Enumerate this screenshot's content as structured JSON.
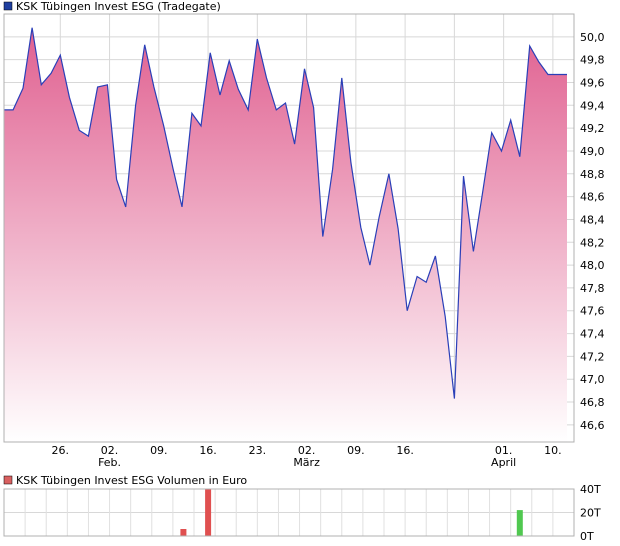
{
  "chart_data": [
    {
      "type": "area",
      "title": "KSK Tübingen Invest ESG (Tradegate)",
      "legend_color": "#1f3f9f",
      "line_color": "#2a3fb8",
      "fill_top_color": "#e06090",
      "fill_bottom_color": "#ffffff",
      "ylim": [
        46.45,
        50.2
      ],
      "y_ticks": [
        50.0,
        49.8,
        49.6,
        49.4,
        49.2,
        49.0,
        48.8,
        48.6,
        48.4,
        48.2,
        48.0,
        47.8,
        47.6,
        47.4,
        47.2,
        47.0,
        46.8,
        46.6
      ],
      "y_tick_labels": [
        "50,0",
        "49,8",
        "49,6",
        "49,4",
        "49,2",
        "49,0",
        "48,8",
        "48,6",
        "48,4",
        "48,2",
        "48,0",
        "47,8",
        "47,6",
        "47,4",
        "47,2",
        "47,0",
        "46,8",
        "46,6"
      ],
      "x_ticks": [
        {
          "day": 12,
          "label": "26.",
          "sublabel": ""
        },
        {
          "day": 19,
          "label": "02.",
          "sublabel": "Feb."
        },
        {
          "day": 26,
          "label": "09.",
          "sublabel": ""
        },
        {
          "day": 33,
          "label": "16.",
          "sublabel": ""
        },
        {
          "day": 40,
          "label": "23.",
          "sublabel": ""
        },
        {
          "day": 47,
          "label": "02.",
          "sublabel": "März"
        },
        {
          "day": 54,
          "label": "09.",
          "sublabel": ""
        },
        {
          "day": 61,
          "label": "16.",
          "sublabel": ""
        },
        {
          "day": 68,
          "label": "",
          "sublabel": ""
        },
        {
          "day": 75,
          "label": "01.",
          "sublabel": "April"
        },
        {
          "day": 82,
          "label": "10.",
          "sublabel": ""
        }
      ],
      "xlim": [
        4,
        85
      ],
      "x": [
        4,
        5.3,
        6.7,
        8,
        9.3,
        10.7,
        12,
        13.3,
        14.7,
        16,
        17.3,
        18.7,
        20,
        21.3,
        22.7,
        24,
        25.3,
        26.7,
        28,
        29.3,
        30.7,
        32,
        33.3,
        34.7,
        36,
        37.3,
        38.7,
        40,
        41.3,
        42.7,
        44,
        45.3,
        46.7,
        48,
        49.3,
        50.7,
        52,
        53.3,
        54.7,
        56,
        57.3,
        58.7,
        60,
        61.3,
        62.7,
        64,
        65.3,
        66.7,
        68,
        69.3,
        70.7,
        72,
        73.3,
        74.7,
        76,
        77.3,
        78.7,
        80,
        81.3,
        82.7,
        84
      ],
      "values": [
        49.36,
        49.36,
        49.55,
        50.08,
        49.58,
        49.68,
        49.84,
        49.47,
        49.18,
        49.13,
        49.56,
        49.58,
        48.75,
        48.51,
        49.4,
        49.93,
        49.56,
        49.22,
        48.85,
        48.51,
        49.33,
        49.22,
        49.86,
        49.49,
        49.79,
        49.54,
        49.36,
        49.98,
        49.64,
        49.36,
        49.42,
        49.06,
        49.72,
        49.38,
        48.25,
        48.84,
        49.64,
        48.9,
        48.33,
        48.0,
        48.42,
        48.8,
        48.32,
        47.6,
        47.9,
        47.85,
        48.08,
        47.55,
        46.83,
        48.78,
        48.12,
        48.63,
        49.16,
        49.0,
        49.27,
        48.95,
        49.92,
        49.78,
        49.67,
        49.67,
        49.67
      ]
    },
    {
      "type": "bar",
      "title": "KSK Tübingen Invest ESG Volumen in Euro",
      "legend_color": "#d96060",
      "ylim": [
        0,
        40000
      ],
      "y_ticks": [
        40000,
        20000,
        0
      ],
      "y_tick_labels": [
        "40T",
        "20T",
        "0T"
      ],
      "bars": [
        {
          "day": 29.5,
          "value": 6000,
          "color": "#e05050"
        },
        {
          "day": 33.0,
          "value": 40000,
          "color": "#e05050"
        },
        {
          "day": 77.3,
          "value": 22000,
          "color": "#50c850"
        }
      ]
    }
  ]
}
